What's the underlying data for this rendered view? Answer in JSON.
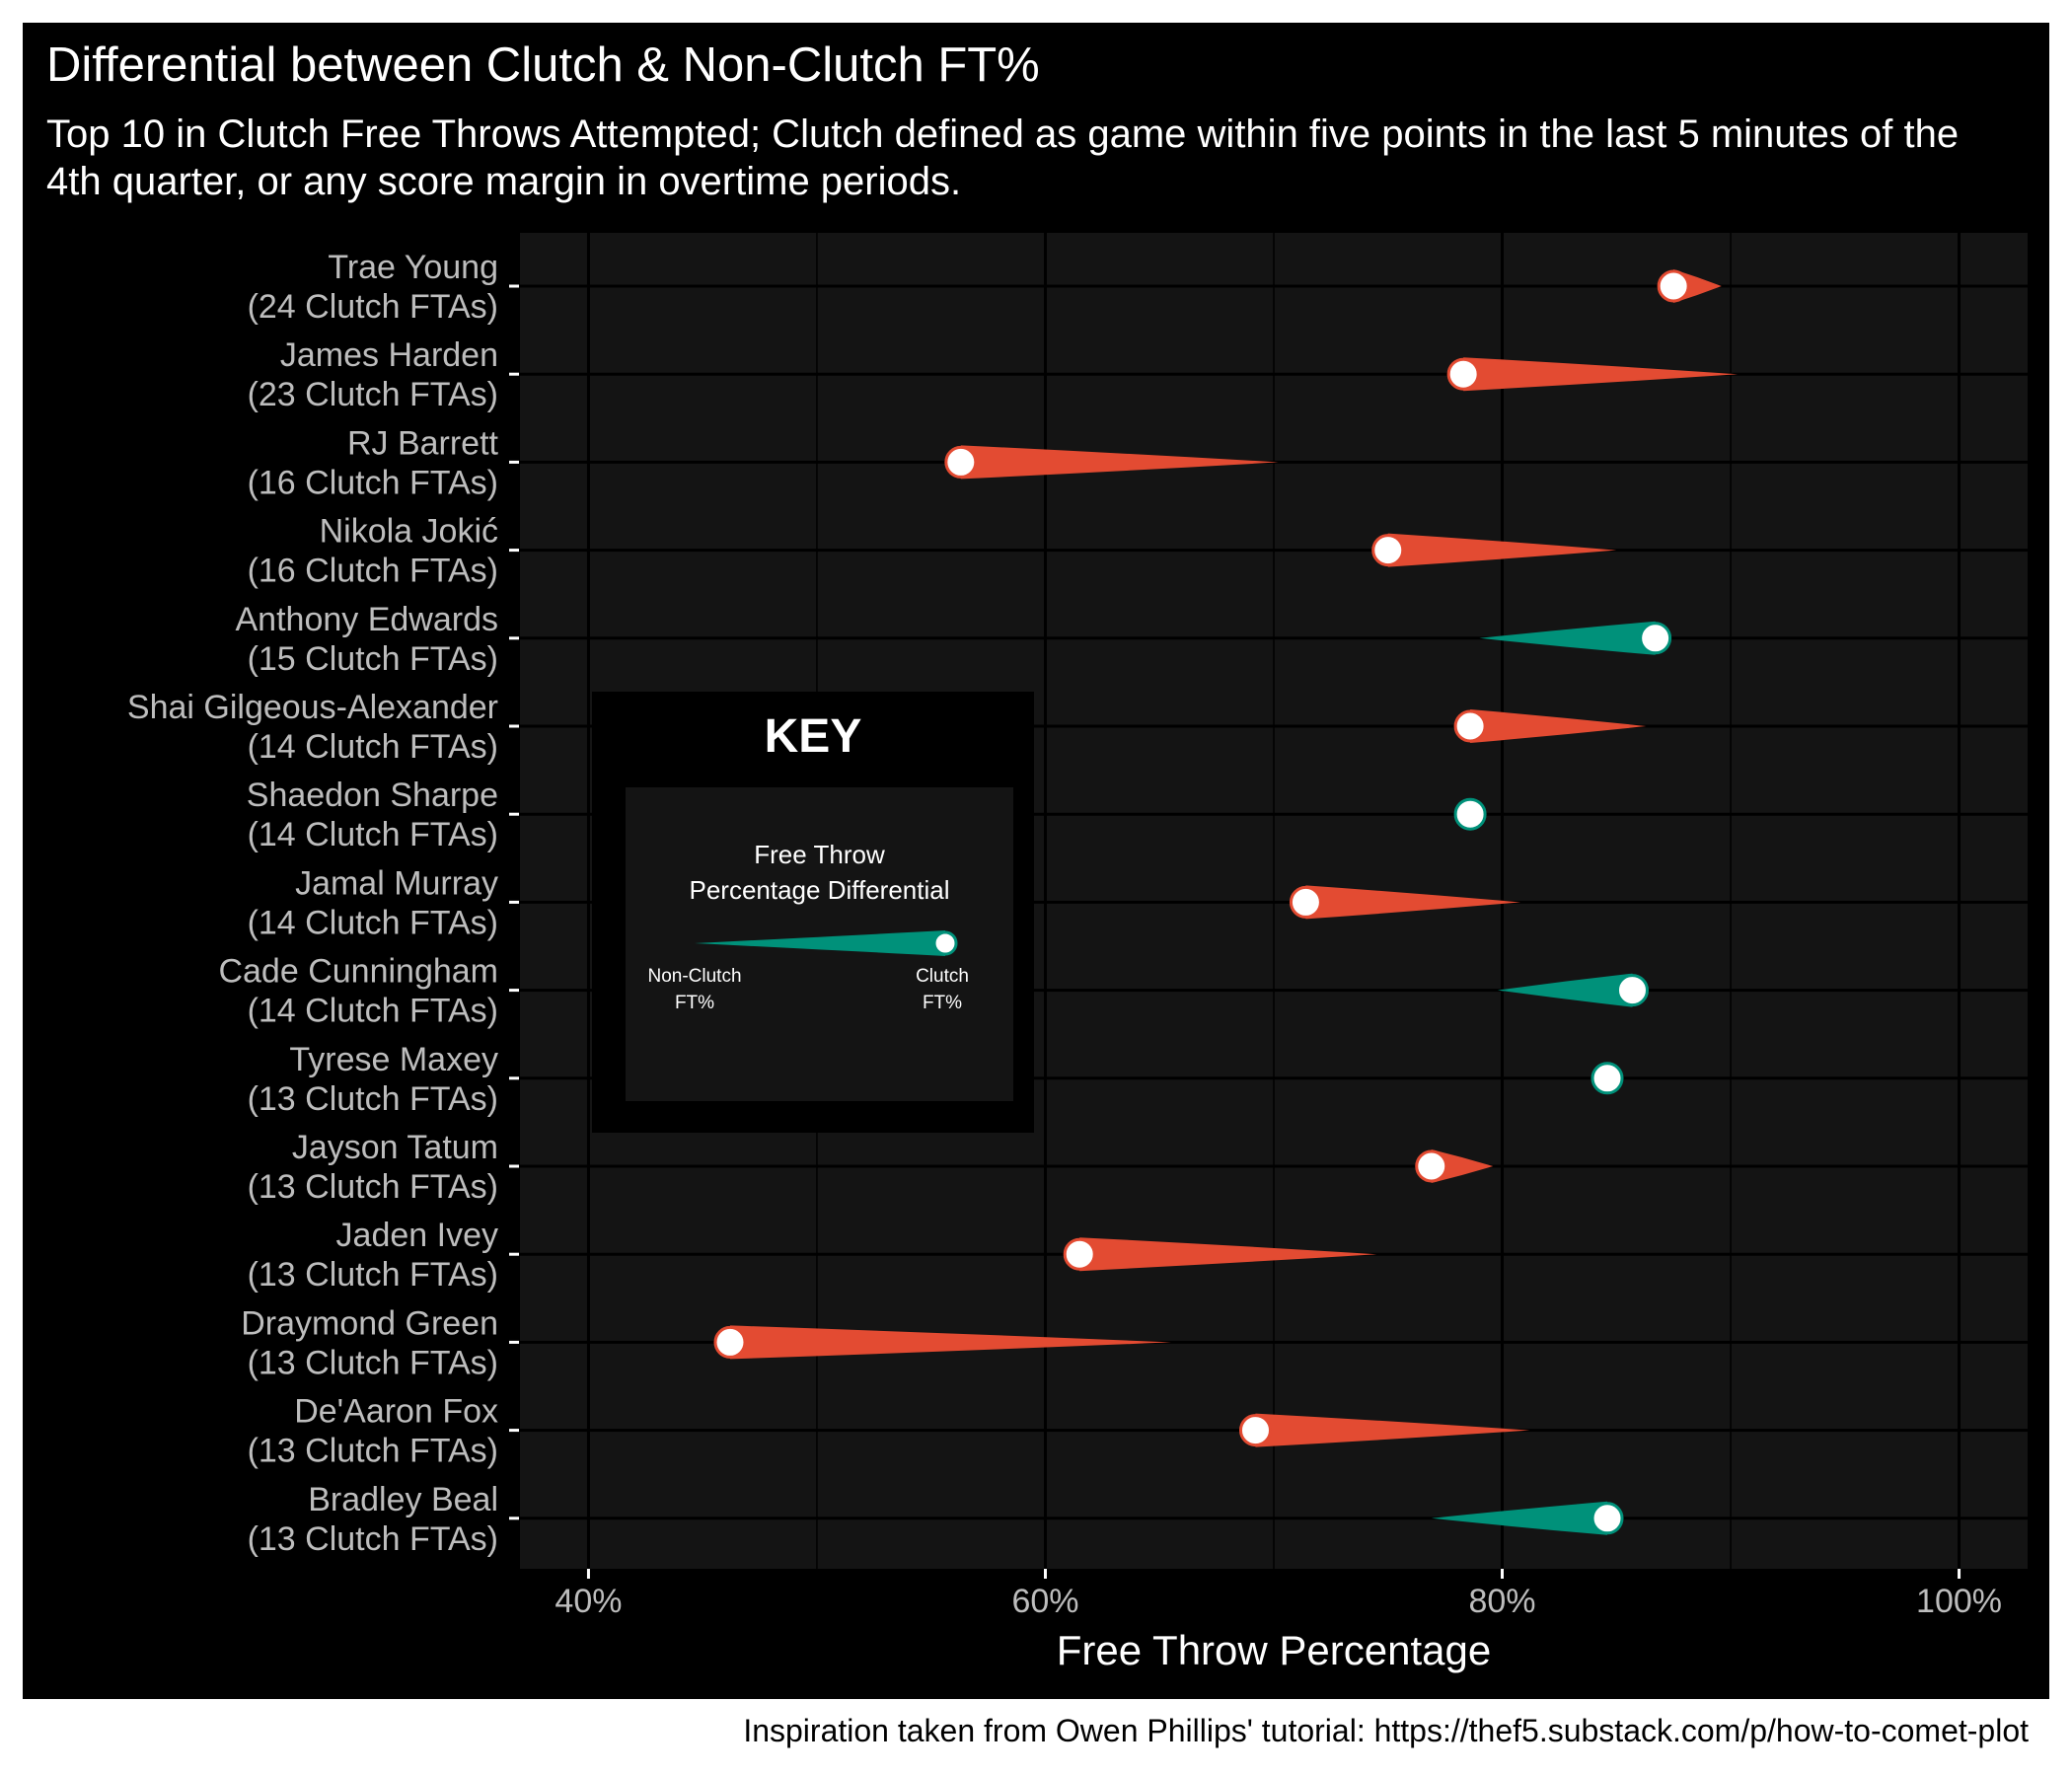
{
  "title": "Differential between Clutch & Non-Clutch FT%",
  "subtitle": "Top 10 in Clutch Free Throws Attempted; Clutch defined as game within five points in the last 5 minutes of the 4th quarter, or any score margin in overtime periods.",
  "caption": "Inspiration taken from Owen Phillips' tutorial: https://thef5.substack.com/p/how-to-comet-plot",
  "colors": {
    "background": "#000000",
    "panel": "#141414",
    "gridline": "#000000",
    "decline": "#e34b32",
    "improve": "#00917a",
    "point_fill": "#ffffff",
    "text": "#ffffff",
    "axis_text": "#bdbdbd"
  },
  "key": {
    "title": "KEY",
    "heading_line1": "Free Throw",
    "heading_line2": "Percentage Differential",
    "left_label_line1": "Non-Clutch",
    "left_label_line2": "FT%",
    "right_label_line1": "Clutch",
    "right_label_line2": "FT%"
  },
  "chart_data": {
    "type": "comet",
    "xlabel": "Free Throw Percentage",
    "xlim": [
      37,
      103
    ],
    "xticks": [
      40,
      60,
      80,
      100
    ],
    "xtick_labels": [
      "40%",
      "60%",
      "80%",
      "100%"
    ],
    "grid": true,
    "legend_position": "left-center",
    "series_fields": [
      "non_clutch_ft_pct",
      "clutch_ft_pct"
    ],
    "players": [
      {
        "name": "Trae Young",
        "clutch_fta_label": "(24 Clutch FTAs)",
        "clutch_fta": 24,
        "non_clutch": 89.6,
        "clutch": 87.5
      },
      {
        "name": "James Harden",
        "clutch_fta_label": "(23 Clutch FTAs)",
        "clutch_fta": 23,
        "non_clutch": 90.3,
        "clutch": 78.3
      },
      {
        "name": "RJ Barrett",
        "clutch_fta_label": "(16 Clutch FTAs)",
        "clutch_fta": 16,
        "non_clutch": 70.2,
        "clutch": 56.3
      },
      {
        "name": "Nikola Jokić",
        "clutch_fta_label": "(16 Clutch FTAs)",
        "clutch_fta": 16,
        "non_clutch": 85.0,
        "clutch": 75.0
      },
      {
        "name": "Anthony Edwards",
        "clutch_fta_label": "(15 Clutch FTAs)",
        "clutch_fta": 15,
        "non_clutch": 79.0,
        "clutch": 86.7
      },
      {
        "name": "Shai Gilgeous-Alexander",
        "clutch_fta_label": "(14 Clutch FTAs)",
        "clutch_fta": 14,
        "non_clutch": 86.3,
        "clutch": 78.6
      },
      {
        "name": "Shaedon Sharpe",
        "clutch_fta_label": "(14 Clutch FTAs)",
        "clutch_fta": 14,
        "non_clutch": 78.6,
        "clutch": 78.6
      },
      {
        "name": "Jamal Murray",
        "clutch_fta_label": "(14 Clutch FTAs)",
        "clutch_fta": 14,
        "non_clutch": 80.8,
        "clutch": 71.4
      },
      {
        "name": "Cade Cunningham",
        "clutch_fta_label": "(14 Clutch FTAs)",
        "clutch_fta": 14,
        "non_clutch": 79.8,
        "clutch": 85.7
      },
      {
        "name": "Tyrese Maxey",
        "clutch_fta_label": "(13 Clutch FTAs)",
        "clutch_fta": 13,
        "non_clutch": 84.6,
        "clutch": 84.6
      },
      {
        "name": "Jayson Tatum",
        "clutch_fta_label": "(13 Clutch FTAs)",
        "clutch_fta": 13,
        "non_clutch": 79.6,
        "clutch": 76.9
      },
      {
        "name": "Jaden Ivey",
        "clutch_fta_label": "(13 Clutch FTAs)",
        "clutch_fta": 13,
        "non_clutch": 74.5,
        "clutch": 61.5
      },
      {
        "name": "Draymond Green",
        "clutch_fta_label": "(13 Clutch FTAs)",
        "clutch_fta": 13,
        "non_clutch": 65.5,
        "clutch": 46.2
      },
      {
        "name": "De'Aaron Fox",
        "clutch_fta_label": "(13 Clutch FTAs)",
        "clutch_fta": 13,
        "non_clutch": 81.2,
        "clutch": 69.2
      },
      {
        "name": "Bradley Beal",
        "clutch_fta_label": "(13 Clutch FTAs)",
        "clutch_fta": 13,
        "non_clutch": 76.9,
        "clutch": 84.6
      }
    ]
  }
}
